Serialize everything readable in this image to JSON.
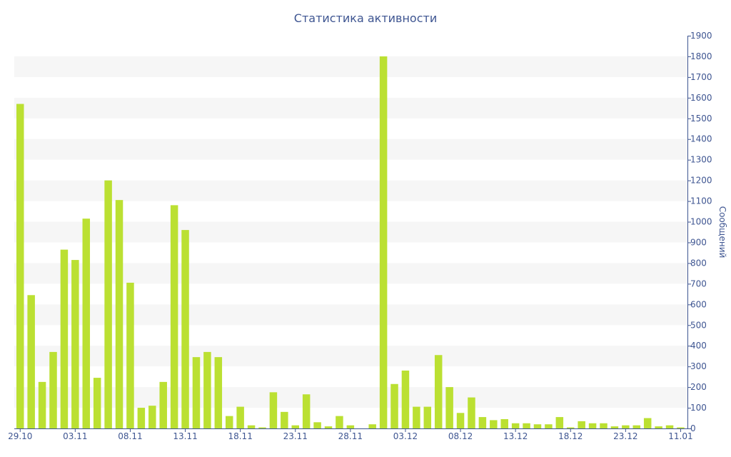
{
  "chart_data": {
    "type": "bar",
    "title": "Статистика активности",
    "xlabel": "",
    "ylabel": "Сообщений",
    "ylim": [
      0,
      1900
    ],
    "ytick_step": 100,
    "grid": "alternating horizontal bands",
    "y_axis_side": "right",
    "bar_color": "#bbe032",
    "band_color": "#f6f6f6",
    "text_color": "#3e5591",
    "axis_color": "#3e5591",
    "x_tick_labels": [
      "29.10",
      "03.11",
      "08.11",
      "13.11",
      "18.11",
      "23.11",
      "28.11",
      "03.12",
      "08.12",
      "13.12",
      "18.12",
      "23.12",
      "11.01"
    ],
    "categories": [
      "29.10",
      "30.10",
      "31.10",
      "01.11",
      "02.11",
      "03.11",
      "04.11",
      "05.11",
      "06.11",
      "07.11",
      "08.11",
      "09.11",
      "10.11",
      "11.11",
      "12.11",
      "13.11",
      "14.11",
      "15.11",
      "16.11",
      "17.11",
      "18.11",
      "19.11",
      "20.11",
      "21.11",
      "22.11",
      "23.11",
      "24.11",
      "25.11",
      "26.11",
      "27.11",
      "28.11",
      "29.11",
      "30.11",
      "01.12",
      "02.12",
      "03.12",
      "04.12",
      "05.12",
      "06.12",
      "07.12",
      "08.12",
      "09.12",
      "10.12",
      "11.12",
      "12.12",
      "13.12",
      "14.12",
      "15.12",
      "16.12",
      "17.12",
      "18.12",
      "19.12",
      "20.12",
      "21.12",
      "22.12",
      "23.12",
      "24.12",
      "25.12",
      "26.12",
      "27.12",
      "11.01"
    ],
    "values": [
      1570,
      645,
      225,
      370,
      865,
      815,
      1015,
      245,
      1200,
      1105,
      705,
      100,
      110,
      225,
      1080,
      960,
      345,
      370,
      345,
      60,
      105,
      15,
      5,
      175,
      80,
      15,
      165,
      30,
      10,
      60,
      15,
      0,
      20,
      1800,
      215,
      280,
      105,
      105,
      355,
      200,
      75,
      150,
      55,
      40,
      45,
      25,
      25,
      20,
      20,
      55,
      5,
      35,
      25,
      25,
      10,
      15,
      15,
      50,
      10,
      15,
      5
    ]
  }
}
